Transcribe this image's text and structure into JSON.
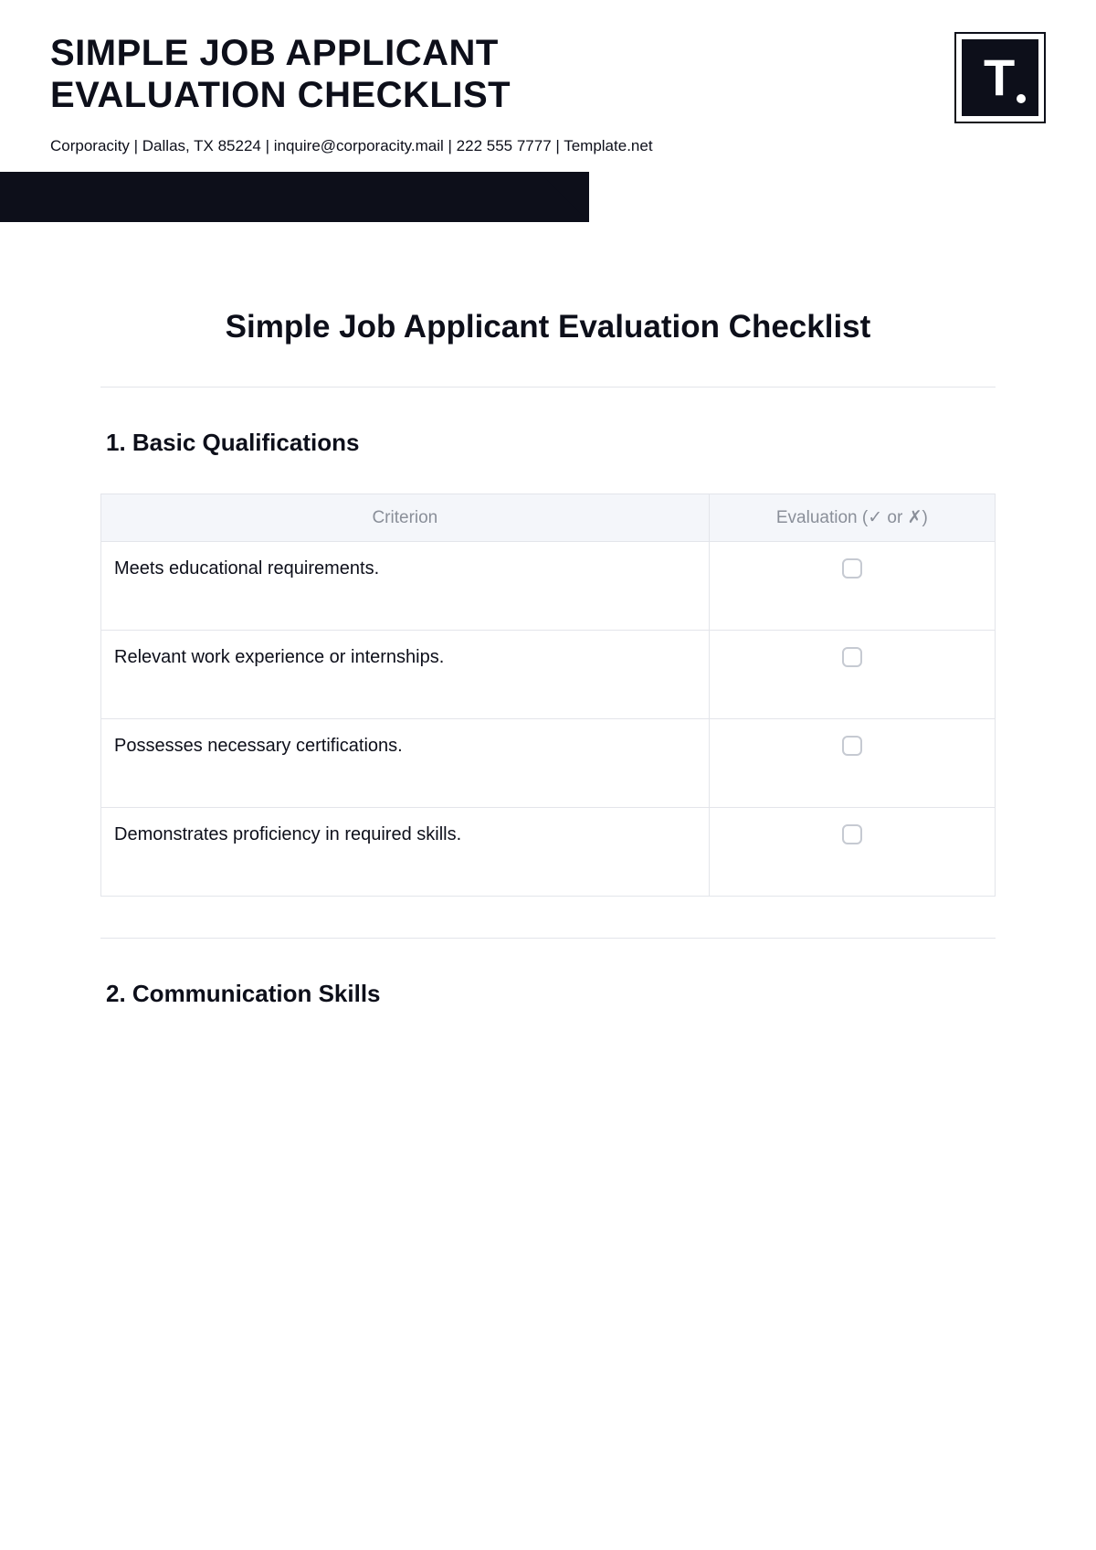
{
  "header": {
    "title_line1": "SIMPLE JOB APPLICANT",
    "title_line2": "EVALUATION CHECKLIST",
    "subheader": "Corporacity | Dallas, TX 85224 | inquire@corporacity.mail | 222 555 7777 | Template.net"
  },
  "logo": {
    "letter": "T"
  },
  "colors": {
    "dark": "#0d0f1a",
    "border": "#e3e5ea",
    "th_bg": "#f4f6fa",
    "th_text": "#8a8f99",
    "checkbox_border": "#c6cad2",
    "background": "#ffffff"
  },
  "document": {
    "title": "Simple Job Applicant Evaluation Checklist"
  },
  "table_headers": {
    "criterion": "Criterion",
    "evaluation": "Evaluation (✓ or ✗)"
  },
  "sections": [
    {
      "title": "1. Basic Qualifications",
      "rows": [
        "Meets educational requirements.",
        "Relevant work experience or internships.",
        "Possesses necessary certifications.",
        "Demonstrates proficiency in required skills."
      ]
    },
    {
      "title": "2. Communication Skills",
      "rows": []
    }
  ]
}
